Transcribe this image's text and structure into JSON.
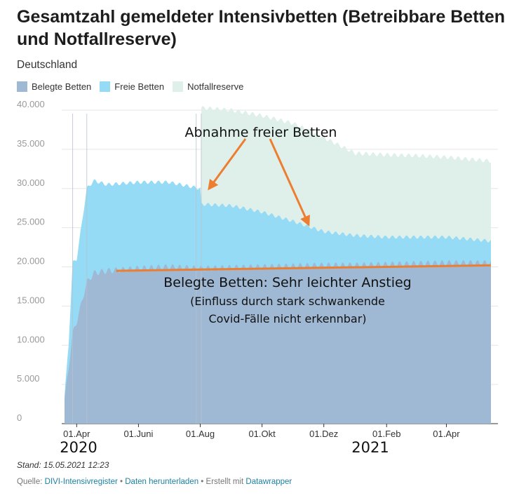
{
  "header": {
    "title": "Gesamtzahl gemeldeter Intensivbetten (Betreibbare Betten und Notfallreserve)",
    "subtitle": "Deutschland"
  },
  "legend": [
    {
      "label": "Belegte Betten",
      "color": "#9fb8d3"
    },
    {
      "label": "Freie Betten",
      "color": "#95dbf5"
    },
    {
      "label": "Notfallreserve",
      "color": "#dff0ea"
    }
  ],
  "annotations": {
    "arrow_label": "Abnahme freier Betten",
    "trend_line1": "Belegte Betten: Sehr leichter Anstieg",
    "trend_line2": "(Einfluss durch stark schwankende",
    "trend_line3": "Covid-Fälle nicht erkennbar)",
    "year_2020": "2020",
    "year_2021": "2021",
    "trend_color": "#ed7d31"
  },
  "footer": {
    "stand": "Stand: 15.05.2021 12:23",
    "source_prefix": "Quelle: ",
    "source_link": "DIVI-Intensivregister",
    "sep1": " • ",
    "download_link": "Daten herunterladen",
    "sep2": " • Erstellt mit ",
    "tool_link": "Datawrapper"
  },
  "chart_data": {
    "type": "area",
    "stacked": true,
    "x_unit": "date",
    "x_range": [
      "2020-03-20",
      "2021-05-15"
    ],
    "y_range": [
      0,
      40000
    ],
    "y_ticks": [
      {
        "value": 0,
        "label": "0"
      },
      {
        "value": 5000,
        "label": "5.000"
      },
      {
        "value": 10000,
        "label": "10.000"
      },
      {
        "value": 15000,
        "label": "15.000"
      },
      {
        "value": 20000,
        "label": "20.000"
      },
      {
        "value": 25000,
        "label": "25.000"
      },
      {
        "value": 30000,
        "label": "30.000"
      },
      {
        "value": 35000,
        "label": "35.000"
      },
      {
        "value": 40000,
        "label": "40.000"
      }
    ],
    "x_ticks": [
      {
        "date": "2020-04-01",
        "label": "01.Apr"
      },
      {
        "date": "2020-06-01",
        "label": "01.Juni"
      },
      {
        "date": "2020-08-01",
        "label": "01.Aug"
      },
      {
        "date": "2020-10-01",
        "label": "01.Okt"
      },
      {
        "date": "2020-12-01",
        "label": "01.Dez"
      },
      {
        "date": "2021-02-01",
        "label": "01.Feb"
      },
      {
        "date": "2021-04-01",
        "label": "01.Apr"
      }
    ],
    "grid": true,
    "series": [
      {
        "name": "Belegte Betten",
        "color": "#9fb8d3",
        "points": [
          [
            "2020-03-20",
            3000
          ],
          [
            "2020-03-24",
            7000
          ],
          [
            "2020-03-28",
            11500
          ],
          [
            "2020-04-01",
            13000
          ],
          [
            "2020-04-06",
            15500
          ],
          [
            "2020-04-11",
            18000
          ],
          [
            "2020-04-18",
            19200
          ],
          [
            "2020-05-01",
            19500
          ],
          [
            "2020-06-01",
            19800
          ],
          [
            "2020-07-01",
            20000
          ],
          [
            "2020-08-01",
            19800
          ],
          [
            "2020-09-01",
            19900
          ],
          [
            "2020-10-01",
            20000
          ],
          [
            "2020-11-01",
            20100
          ],
          [
            "2020-12-01",
            20200
          ],
          [
            "2021-01-01",
            20200
          ],
          [
            "2021-02-01",
            20300
          ],
          [
            "2021-03-01",
            20400
          ],
          [
            "2021-04-01",
            20500
          ],
          [
            "2021-05-01",
            20500
          ],
          [
            "2021-05-15",
            20500
          ]
        ]
      },
      {
        "name": "Freie Betten",
        "color": "#95dbf5",
        "stacked_total": [
          [
            "2020-03-20",
            3500
          ],
          [
            "2020-03-24",
            10000
          ],
          [
            "2020-03-28",
            20500
          ],
          [
            "2020-04-01",
            21000
          ],
          [
            "2020-04-06",
            25500
          ],
          [
            "2020-04-11",
            30000
          ],
          [
            "2020-04-18",
            31000
          ],
          [
            "2020-05-01",
            30500
          ],
          [
            "2020-06-01",
            30800
          ],
          [
            "2020-07-01",
            30800
          ],
          [
            "2020-08-01",
            30000
          ],
          [
            "2020-08-02",
            28000
          ],
          [
            "2020-09-01",
            27800
          ],
          [
            "2020-10-01",
            27000
          ],
          [
            "2020-11-01",
            25800
          ],
          [
            "2020-12-01",
            24500
          ],
          [
            "2021-01-01",
            24000
          ],
          [
            "2021-02-01",
            23800
          ],
          [
            "2021-03-01",
            23800
          ],
          [
            "2021-04-01",
            23800
          ],
          [
            "2021-05-15",
            23300
          ]
        ]
      },
      {
        "name": "Notfallreserve",
        "color": "#dff0ea",
        "stacked_total": [
          [
            "2020-08-02",
            40300
          ],
          [
            "2020-09-01",
            40000
          ],
          [
            "2020-10-01",
            39300
          ],
          [
            "2020-11-01",
            38300
          ],
          [
            "2020-12-01",
            36500
          ],
          [
            "2021-01-01",
            34500
          ],
          [
            "2021-02-01",
            34300
          ],
          [
            "2021-03-01",
            34200
          ],
          [
            "2021-04-01",
            34000
          ],
          [
            "2021-05-15",
            33500
          ]
        ]
      }
    ],
    "trend_line": {
      "start": [
        "2020-05-10",
        19500
      ],
      "end": [
        "2021-05-15",
        20200
      ]
    }
  }
}
